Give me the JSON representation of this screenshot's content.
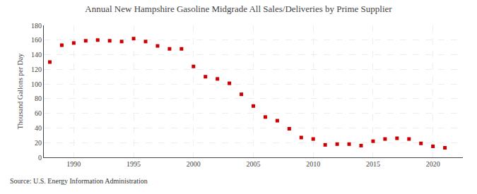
{
  "chart_data": {
    "type": "scatter",
    "title": "Annual New Hampshire Gasoline Midgrade All Sales/Deliveries by Prime Supplier",
    "ylabel": "Thousand Gallons per Day",
    "annotations": [
      "Source: U.S. Energy Information Administration"
    ],
    "color": "#cc0000",
    "marker": "square",
    "x": [
      1988,
      1989,
      1990,
      1991,
      1992,
      1993,
      1994,
      1995,
      1996,
      1997,
      1998,
      1999,
      2000,
      2001,
      2002,
      2003,
      2004,
      2005,
      2006,
      2007,
      2008,
      2009,
      2010,
      2011,
      2012,
      2013,
      2014,
      2015,
      2016,
      2017,
      2018,
      2019,
      2020,
      2021
    ],
    "values": [
      130,
      153,
      156,
      159,
      160,
      159,
      158,
      162,
      158,
      152,
      148,
      148,
      124,
      110,
      107,
      101,
      86,
      70,
      55,
      50,
      39,
      27,
      25,
      17,
      18,
      18,
      16,
      22,
      25,
      26,
      25,
      19,
      15,
      13
    ],
    "xlim": [
      1987.5,
      2022.5
    ],
    "xticks": [
      1990,
      1995,
      2000,
      2005,
      2010,
      2015,
      2020
    ],
    "ylim": [
      0,
      180
    ],
    "yticks": [
      0,
      20,
      40,
      60,
      80,
      100,
      120,
      140,
      160,
      180
    ],
    "grid": true
  }
}
